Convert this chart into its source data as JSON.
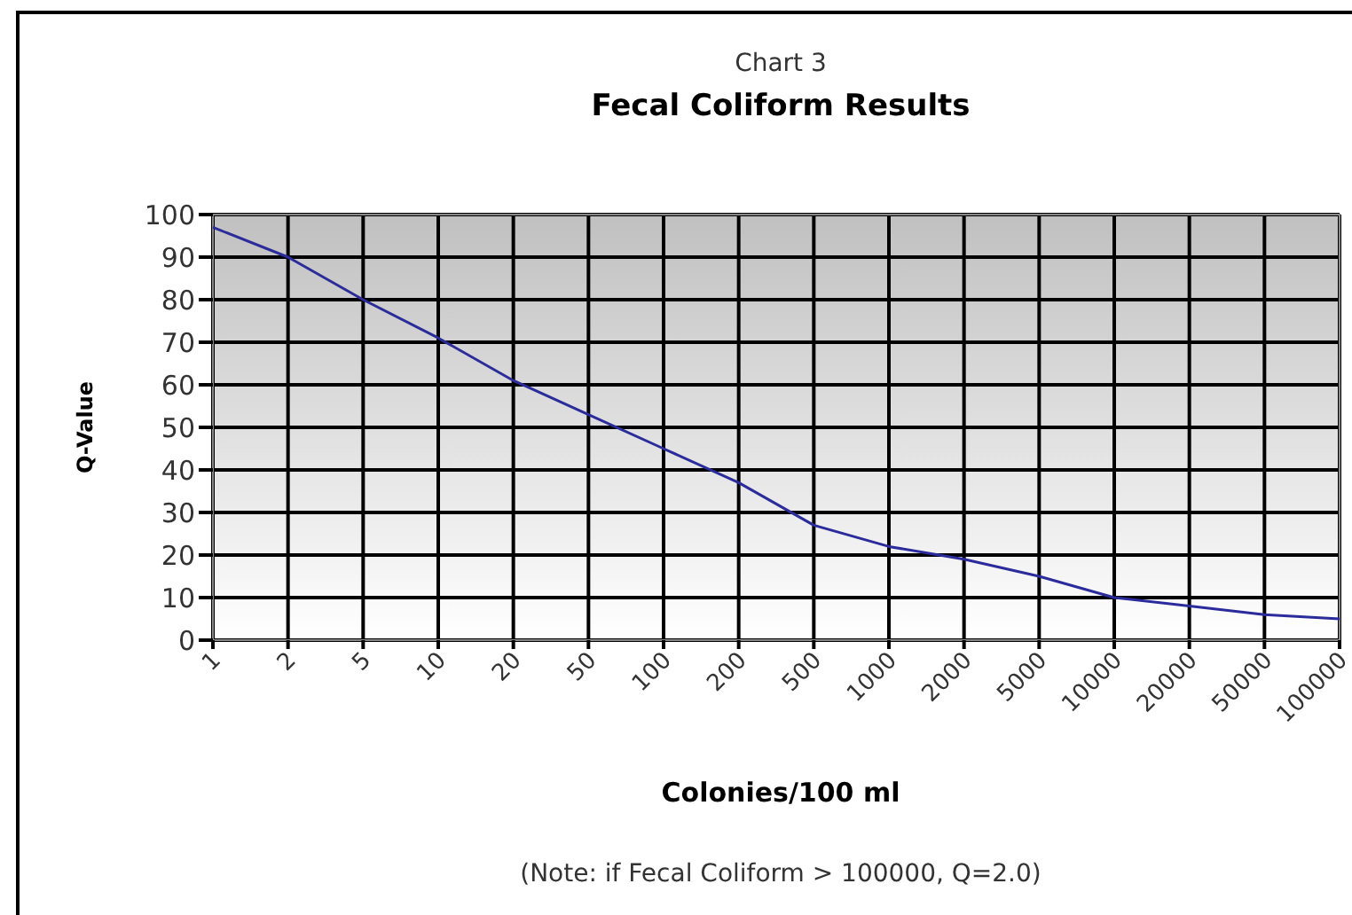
{
  "chart_data": {
    "type": "line",
    "title": "Chart 3",
    "subtitle": "Fecal Coliform Results",
    "xlabel": "Colonies/100 ml",
    "ylabel": "Q-Value",
    "categories": [
      "1",
      "2",
      "5",
      "10",
      "20",
      "50",
      "100",
      "200",
      "500",
      "1000",
      "2000",
      "5000",
      "10000",
      "20000",
      "50000",
      "100000"
    ],
    "series": [
      {
        "color": "#2b2b9c",
        "values": [
          97,
          90,
          80,
          71,
          61,
          53,
          45,
          37,
          27,
          22,
          19,
          15,
          10,
          8,
          6,
          5
        ]
      }
    ],
    "ylim": [
      0,
      100
    ],
    "yticks": [
      0,
      10,
      20,
      30,
      40,
      50,
      60,
      70,
      80,
      90,
      100
    ],
    "grid": true,
    "marker": "none",
    "line_style": "solid",
    "annotations": [
      "(Note: if Fecal Coliform > 100000, Q=2.0)"
    ]
  }
}
